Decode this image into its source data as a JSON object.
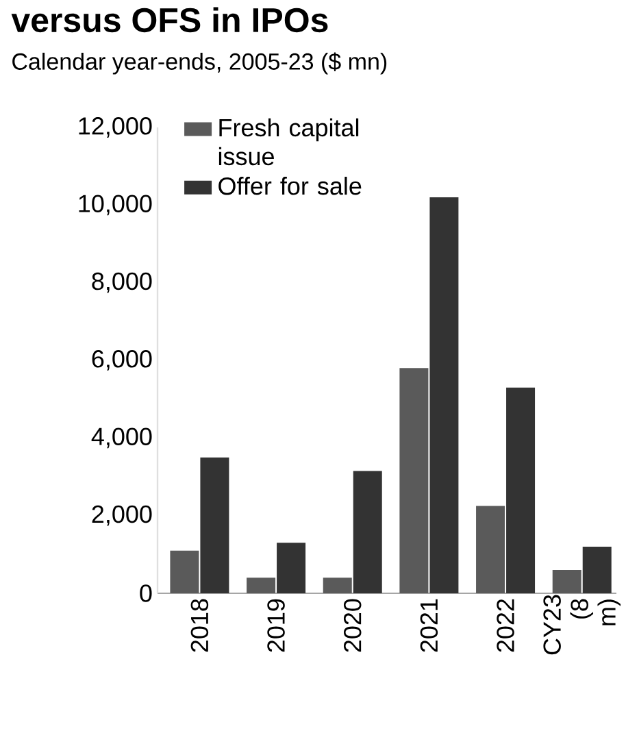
{
  "chart_data": {
    "type": "bar",
    "title": "versus OFS in IPOs",
    "subtitle": "Calendar year-ends, 2005-23 ($ mn)",
    "categories": [
      "2018",
      "2019",
      "2020",
      "2021",
      "2022",
      "CY23 (8 m)"
    ],
    "series": [
      {
        "name": "Fresh capital issue",
        "color": "#5a5a5a",
        "values": [
          1100,
          400,
          400,
          5800,
          2250,
          600
        ]
      },
      {
        "name": "Offer for sale",
        "color": "#333333",
        "values": [
          3500,
          1300,
          3150,
          10200,
          5300,
          1200
        ]
      }
    ],
    "ylim": [
      0,
      12000
    ],
    "yticks": [
      0,
      {
        "value": 2000,
        "label": "2,000"
      },
      {
        "value": 4000,
        "label": "4,000"
      },
      {
        "value": 6000,
        "label": "6,000"
      },
      {
        "value": 8000,
        "label": "8,000"
      },
      {
        "value": 10000,
        "label": "10,000"
      },
      {
        "value": 12000,
        "label": "12,000"
      }
    ],
    "legend": "top left"
  }
}
